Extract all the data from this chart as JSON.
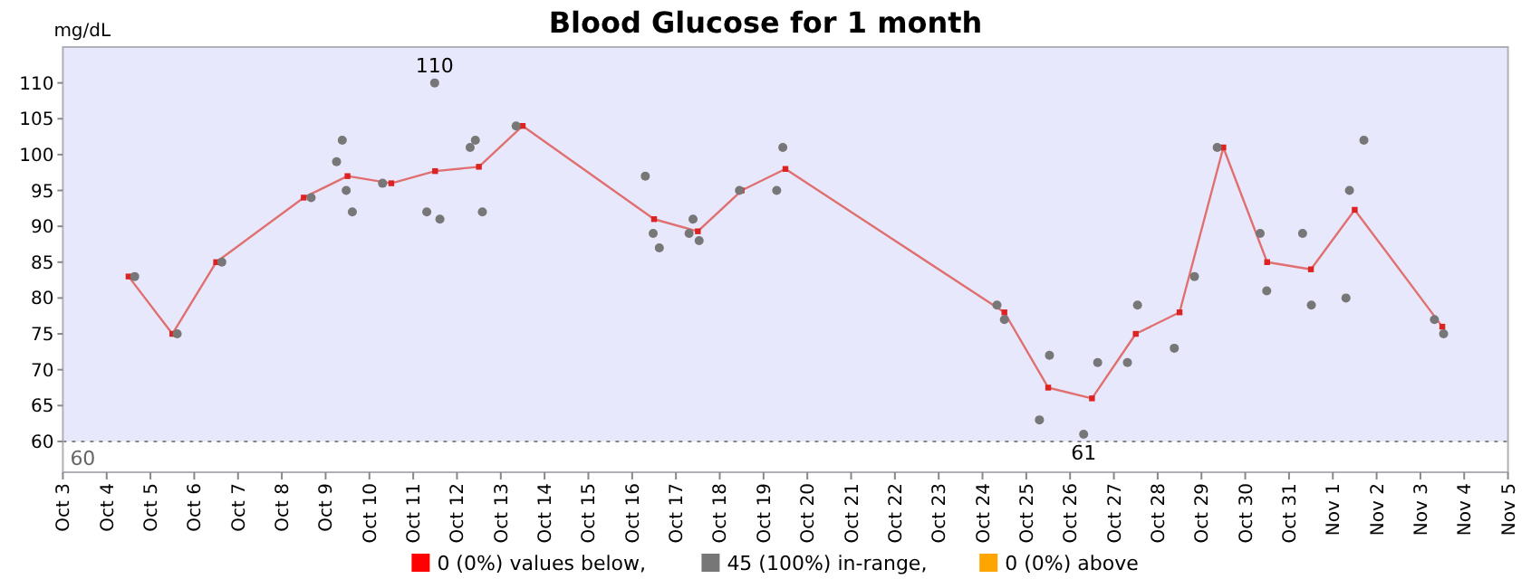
{
  "chart_data": {
    "type": "scatter",
    "title": "Blood Glucose for 1 month",
    "ylabel": "mg/dL",
    "xlim": [
      "--10-03",
      "--11-05"
    ],
    "xticks": [
      {
        "value": "--10-03",
        "label": "Oct 3"
      },
      {
        "value": "--10-04",
        "label": "Oct 4"
      },
      {
        "value": "--10-05",
        "label": "Oct 5"
      },
      {
        "value": "--10-06",
        "label": "Oct 6"
      },
      {
        "value": "--10-07",
        "label": "Oct 7"
      },
      {
        "value": "--10-08",
        "label": "Oct 8"
      },
      {
        "value": "--10-09",
        "label": "Oct 9"
      },
      {
        "value": "--10-10",
        "label": "Oct 10"
      },
      {
        "value": "--10-11",
        "label": "Oct 11"
      },
      {
        "value": "--10-12",
        "label": "Oct 12"
      },
      {
        "value": "--10-13",
        "label": "Oct 13"
      },
      {
        "value": "--10-14",
        "label": "Oct 14"
      },
      {
        "value": "--10-15",
        "label": "Oct 15"
      },
      {
        "value": "--10-16",
        "label": "Oct 16"
      },
      {
        "value": "--10-17",
        "label": "Oct 17"
      },
      {
        "value": "--10-18",
        "label": "Oct 18"
      },
      {
        "value": "--10-19",
        "label": "Oct 19"
      },
      {
        "value": "--10-20",
        "label": "Oct 20"
      },
      {
        "value": "--10-21",
        "label": "Oct 21"
      },
      {
        "value": "--10-22",
        "label": "Oct 22"
      },
      {
        "value": "--10-23",
        "label": "Oct 23"
      },
      {
        "value": "--10-24",
        "label": "Oct 24"
      },
      {
        "value": "--10-25",
        "label": "Oct 25"
      },
      {
        "value": "--10-26",
        "label": "Oct 26"
      },
      {
        "value": "--10-27",
        "label": "Oct 27"
      },
      {
        "value": "--10-28",
        "label": "Oct 28"
      },
      {
        "value": "--10-29",
        "label": "Oct 29"
      },
      {
        "value": "--10-30",
        "label": "Oct 30"
      },
      {
        "value": "--10-31",
        "label": "Oct 31"
      },
      {
        "value": "--11-01",
        "label": "Nov 1"
      },
      {
        "value": "--11-02",
        "label": "Nov 2"
      },
      {
        "value": "--11-03",
        "label": "Nov 3"
      },
      {
        "value": "--11-04",
        "label": "Nov 4"
      },
      {
        "value": "--11-05",
        "label": "Nov 5"
      }
    ],
    "ylim": [
      55.7,
      115
    ],
    "yticks": [
      60,
      65,
      70,
      75,
      80,
      85,
      90,
      95,
      100,
      105,
      110
    ],
    "grid": false,
    "legend": "bottom",
    "bands": [
      {
        "axis": "y",
        "from": 55.7,
        "to": 60,
        "color": "#ffffff"
      }
    ],
    "ref_lines": [
      {
        "axis": "y",
        "value": 60,
        "label": "60",
        "color": "#888888",
        "line_style": "dotted"
      }
    ],
    "annotations": [
      {
        "text": "110",
        "x": "--10-11T11:46",
        "y": 110
      },
      {
        "text": "61",
        "x": "--10-26T07:26",
        "y": 61
      }
    ],
    "series": [
      {
        "name": "0 (0%) values below,",
        "color": "#ff0000"
      },
      {
        "name": "45 (100%) in-range,",
        "color": "#777777",
        "marker": "circle",
        "x": [
          "--10-04T15:22",
          "--10-05T14:38",
          "--10-06T15:07",
          "--10-08T16:05",
          "--10-09T06:00",
          "--10-09T09:07",
          "--10-09T11:17",
          "--10-09T14:38",
          "--10-10T07:12",
          "--10-11T11:46",
          "--10-11T07:26",
          "--10-11T14:38",
          "--10-12T07:12",
          "--10-12T10:05",
          "--10-12T13:55",
          "--10-13T08:24",
          "--10-16T07:12",
          "--10-16T11:31",
          "--10-16T14:53",
          "--10-17T07:12",
          "--10-17T09:22",
          "--10-17T12:43",
          "--10-18T10:48",
          "--10-19T07:12",
          "--10-19T10:34",
          "--10-24T07:55",
          "--10-24T12:00",
          "--10-25T07:12",
          "--10-25T12:43",
          "--10-26T07:26",
          "--10-26T15:07",
          "--10-27T07:26",
          "--10-27T12:58",
          "--10-28T09:07",
          "--10-28T20:10",
          "--10-29T08:38",
          "--10-30T08:10",
          "--10-30T11:46",
          "--10-31T07:26",
          "--10-31T12:14",
          "--11-01T07:12",
          "--11-01T09:07",
          "--11-01T17:02",
          "--11-03T07:41",
          "--11-03T12:43"
        ],
        "values": [
          83,
          75,
          85,
          94,
          99,
          102,
          95,
          92,
          96,
          110,
          92,
          91,
          101,
          102,
          92,
          104,
          97,
          89,
          87,
          89,
          91,
          88,
          95,
          95,
          101,
          79,
          77,
          63,
          72,
          61,
          71,
          71,
          79,
          73,
          83,
          101,
          89,
          81,
          89,
          79,
          80,
          95,
          102,
          77,
          75
        ]
      },
      {
        "name": "0 (0%) above",
        "color": "#ffa500"
      },
      {
        "type": "line",
        "color": "#e07070",
        "marker": "square",
        "line_style": "solid",
        "x": [
          "--10-04T12:00",
          "--10-05T12:00",
          "--10-06T12:00",
          "--10-08T12:00",
          "--10-09T12:00",
          "--10-10T12:00",
          "--10-11T12:00",
          "--10-12T12:00",
          "--10-13T12:00",
          "--10-16T12:00",
          "--10-17T12:00",
          "--10-18T12:00",
          "--10-19T12:00",
          "--10-24T12:00",
          "--10-25T12:00",
          "--10-26T12:00",
          "--10-27T12:00",
          "--10-28T12:00",
          "--10-29T12:00",
          "--10-30T12:00",
          "--10-31T12:00",
          "--11-01T12:00",
          "--11-03T12:00"
        ],
        "values": [
          83,
          75,
          85,
          94,
          97,
          96,
          97.7,
          98.3,
          104,
          91,
          89.3,
          95,
          98,
          78,
          67.5,
          66,
          75,
          78,
          101,
          85,
          84,
          92.3,
          76
        ]
      }
    ]
  }
}
